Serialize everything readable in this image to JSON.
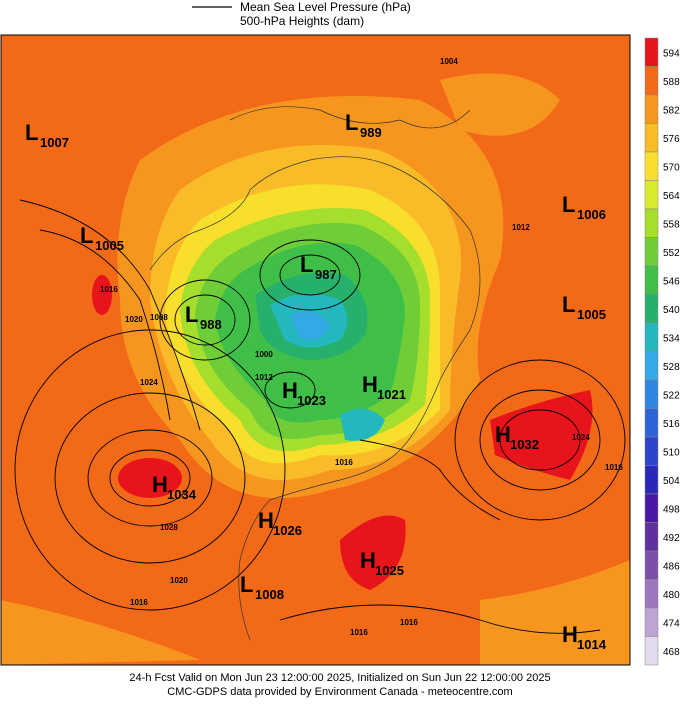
{
  "legend": {
    "pressure": "Mean Sea Level Pressure (hPa)",
    "heights": "500-hPa Heights (dam)"
  },
  "colorbar": {
    "ticks": [
      594,
      588,
      582,
      576,
      570,
      564,
      558,
      552,
      546,
      540,
      534,
      528,
      522,
      516,
      510,
      504,
      498,
      492,
      486,
      480,
      474,
      468
    ],
    "colors": [
      "#e8141c",
      "#f26a17",
      "#f7961e",
      "#f9bb27",
      "#f8df2c",
      "#d9ea2d",
      "#a6de2e",
      "#6fcd38",
      "#3fbf48",
      "#27b06c",
      "#22b8bd",
      "#35a9e6",
      "#2d87e0",
      "#2a64d8",
      "#2a44cc",
      "#2a28ba",
      "#4a17a3",
      "#60309e",
      "#7c4fab",
      "#9d76bd",
      "#bea4d4",
      "#e4dcee"
    ]
  },
  "pressure_centers": [
    {
      "type": "L",
      "value": 1007
    },
    {
      "type": "L",
      "value": 1005
    },
    {
      "type": "L",
      "value": 988
    },
    {
      "type": "L",
      "value": 987
    },
    {
      "type": "L",
      "value": 989
    },
    {
      "type": "L",
      "value": 1006
    },
    {
      "type": "L",
      "value": 1005
    },
    {
      "type": "H",
      "value": 1023
    },
    {
      "type": "H",
      "value": 1021
    },
    {
      "type": "H",
      "value": 1032
    },
    {
      "type": "H",
      "value": 1034
    },
    {
      "type": "H",
      "value": 1026
    },
    {
      "type": "H",
      "value": 1025
    },
    {
      "type": "L",
      "value": 1008
    },
    {
      "type": "H",
      "value": 1014
    }
  ],
  "isobar_labels": [
    1004,
    1012,
    1016,
    1020,
    1008,
    1024,
    1028,
    1020,
    1016,
    1016,
    1016,
    1024,
    1016,
    1000,
    1012,
    1016
  ],
  "footer": {
    "line1": "24-h Fcst Valid on Mon Jun 23 12:00:00 2025, Initialized on Sun Jun 22 12:00:00 2025",
    "line2": "CMC-GDPS data provided by Environment Canada - meteocentre.com"
  }
}
